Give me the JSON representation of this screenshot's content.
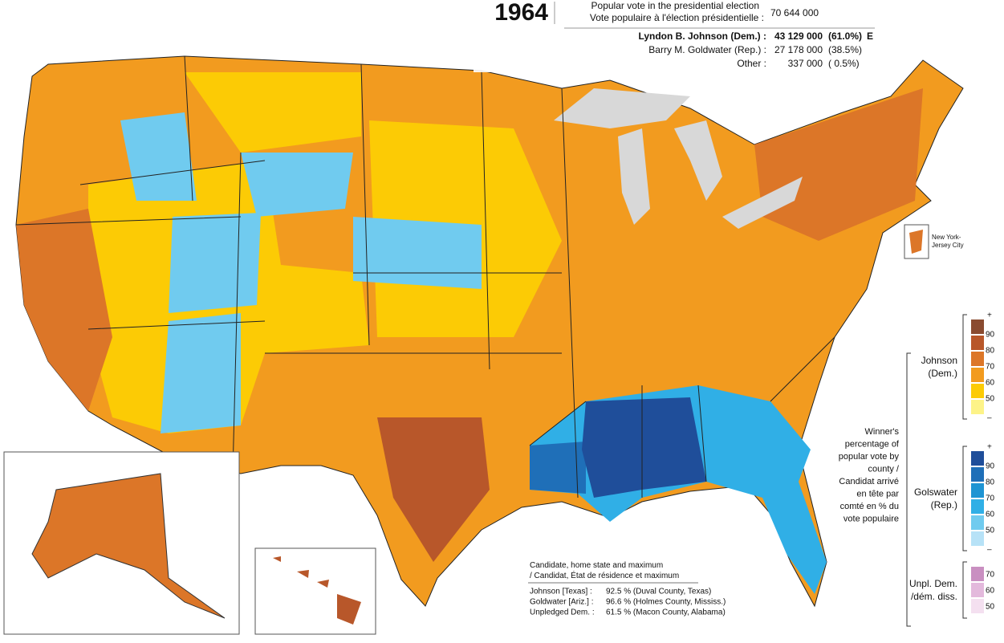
{
  "header": {
    "year": "1964",
    "line1": "Popular vote in the presidential election",
    "line2": "Vote populaire à l'élection présidentielle :",
    "total": "70 644 000",
    "candidates": [
      {
        "name": "Lyndon B. Johnson (Dem.) :",
        "votes": "43 129 000",
        "share": "(61.0%)",
        "mark": "E"
      },
      {
        "name": "Barry M. Goldwater (Rep.) :",
        "votes": "27 178 000",
        "share": "(38.5%)"
      },
      {
        "name": "Other :",
        "votes": "337 000",
        "share": "( 0.5%)"
      }
    ]
  },
  "inset_label": "New York-Jersey City",
  "legend": {
    "caption": "Winner's percentage of popular vote by county / Candidat arrivé en tête par comté en % du vote populaire",
    "groups": [
      {
        "label": "Johnson (Dem.)",
        "top": "+",
        "bottom": "–",
        "ticks": [
          90,
          80,
          70,
          60,
          50
        ],
        "colors": [
          "#8a4b30",
          "#b8572a",
          "#dc7628",
          "#f29b1f",
          "#fccb05",
          "#fdf388"
        ]
      },
      {
        "label": "Golswater (Rep.)",
        "top": "+",
        "bottom": "–",
        "ticks": [
          90,
          80,
          70,
          60,
          50
        ],
        "colors": [
          "#1f4e9a",
          "#1f6fb8",
          "#1e94d3",
          "#30afe6",
          "#70cbef",
          "#b7e2f7"
        ]
      },
      {
        "label": "Unpl. Dem. /dém. diss.",
        "ticks": [
          70,
          60,
          50
        ],
        "colors": [
          "#c98fc1",
          "#e3b9dc",
          "#f4e0f0"
        ]
      }
    ]
  },
  "note": {
    "title": "Candidate, home state and maximum / Candidat, État de résidence et maximum",
    "rows": [
      [
        "Johnson [Texas] :",
        "92.5 % (Duval County, Texas)"
      ],
      [
        "Goldwater [Ariz.] :",
        "96.6 % (Holmes County, Mississ.)"
      ],
      [
        "Unpledged Dem. :",
        "61.5 % (Macon County, Alabama)"
      ]
    ]
  }
}
